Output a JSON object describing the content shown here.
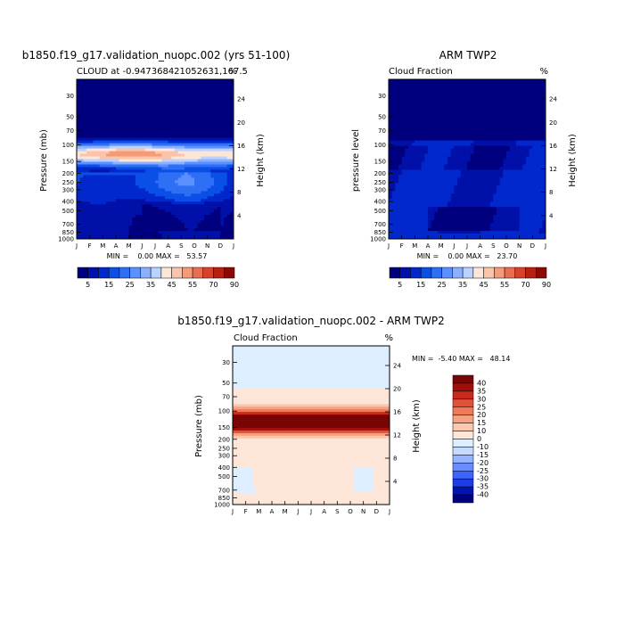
{
  "chart_data": [
    {
      "type": "heatmap",
      "title": "b1850.f19_g17.validation_nuopc.002 (yrs 51-100)",
      "subtitle_left": "CLOUD at -0.947368421052631,167.5",
      "subtitle_right": "%",
      "ylabel": "Pressure (mb)",
      "y2label": "Height (km)",
      "x_ticks": [
        "J",
        "F",
        "M",
        "A",
        "M",
        "J",
        "J",
        "A",
        "S",
        "O",
        "N",
        "D",
        "J"
      ],
      "y_ticks": [
        "30",
        "50",
        "70",
        "100",
        "150",
        "200",
        "250",
        "300",
        "400",
        "500",
        "700",
        "850",
        "1000"
      ],
      "y2_ticks": [
        "24",
        "20",
        "16",
        "12",
        "8",
        "4"
      ],
      "stats": "MIN =    0.00 MAX =   53.57",
      "colorbar_labels": [
        "5",
        "15",
        "25",
        "35",
        "45",
        "55",
        "70",
        "90"
      ],
      "ylim": [
        1000,
        20
      ],
      "field": "model_cloud"
    },
    {
      "type": "heatmap",
      "title": "ARM TWP2",
      "subtitle_left": "Cloud Fraction",
      "subtitle_right": "%",
      "ylabel": "pressure level",
      "y2label": "Height (km)",
      "x_ticks": [
        "J",
        "F",
        "M",
        "A",
        "M",
        "J",
        "J",
        "A",
        "S",
        "O",
        "N",
        "D",
        "J"
      ],
      "y_ticks": [
        "30",
        "50",
        "70",
        "100",
        "150",
        "200",
        "250",
        "300",
        "400",
        "500",
        "700",
        "850",
        "1000"
      ],
      "y2_ticks": [
        "24",
        "20",
        "16",
        "12",
        "8",
        "4"
      ],
      "stats": "MIN =    0.00 MAX =   23.70",
      "colorbar_labels": [
        "5",
        "15",
        "25",
        "35",
        "45",
        "55",
        "70",
        "90"
      ],
      "ylim": [
        1000,
        20
      ],
      "field": "obs_cloud"
    },
    {
      "type": "heatmap",
      "title": "b1850.f19_g17.validation_nuopc.002 - ARM TWP2",
      "subtitle_left": "Cloud Fraction",
      "subtitle_right": "%",
      "ylabel": "Pressure (mb)",
      "y2label": "Height (km)",
      "x_ticks": [
        "J",
        "F",
        "M",
        "A",
        "M",
        "J",
        "J",
        "A",
        "S",
        "O",
        "N",
        "D",
        "J"
      ],
      "y_ticks": [
        "30",
        "50",
        "70",
        "100",
        "150",
        "200",
        "250",
        "300",
        "400",
        "500",
        "700",
        "850",
        "1000"
      ],
      "y2_ticks": [
        "24",
        "20",
        "16",
        "12",
        "8",
        "4"
      ],
      "stats": "MIN =  -5.40 MAX =   48.14",
      "colorbar_labels": [
        "40",
        "35",
        "30",
        "25",
        "20",
        "15",
        "10",
        "0",
        "-10",
        "-15",
        "-20",
        "-25",
        "-30",
        "-35",
        "-40"
      ],
      "ylim": [
        1000,
        20
      ],
      "field": "difference"
    }
  ],
  "palettes": {
    "seq": [
      "#00007f",
      "#0010a8",
      "#0028cc",
      "#0a4fe6",
      "#2f6ff5",
      "#5a90ff",
      "#8ab0ff",
      "#bad2ff",
      "#fce6d8",
      "#fbc3a9",
      "#f49b78",
      "#ea6e4d",
      "#d9422a",
      "#b8200f",
      "#8c0a05"
    ],
    "seq_levels": [
      5,
      10,
      15,
      20,
      25,
      30,
      35,
      40,
      45,
      50,
      55,
      60,
      70,
      80,
      90
    ],
    "diff": [
      "#00007f",
      "#0014b4",
      "#1e3ce6",
      "#3c64ff",
      "#6a8cff",
      "#98b4ff",
      "#c4daff",
      "#dceeff",
      "#fde6d8",
      "#fbc8ad",
      "#f6a282",
      "#ef7a58",
      "#e2503a",
      "#c82b1e",
      "#a0100a",
      "#7a0505"
    ],
    "diff_levels": [
      -40,
      -35,
      -30,
      -25,
      -20,
      -15,
      -10,
      0,
      10,
      15,
      20,
      25,
      30,
      35,
      40
    ]
  }
}
